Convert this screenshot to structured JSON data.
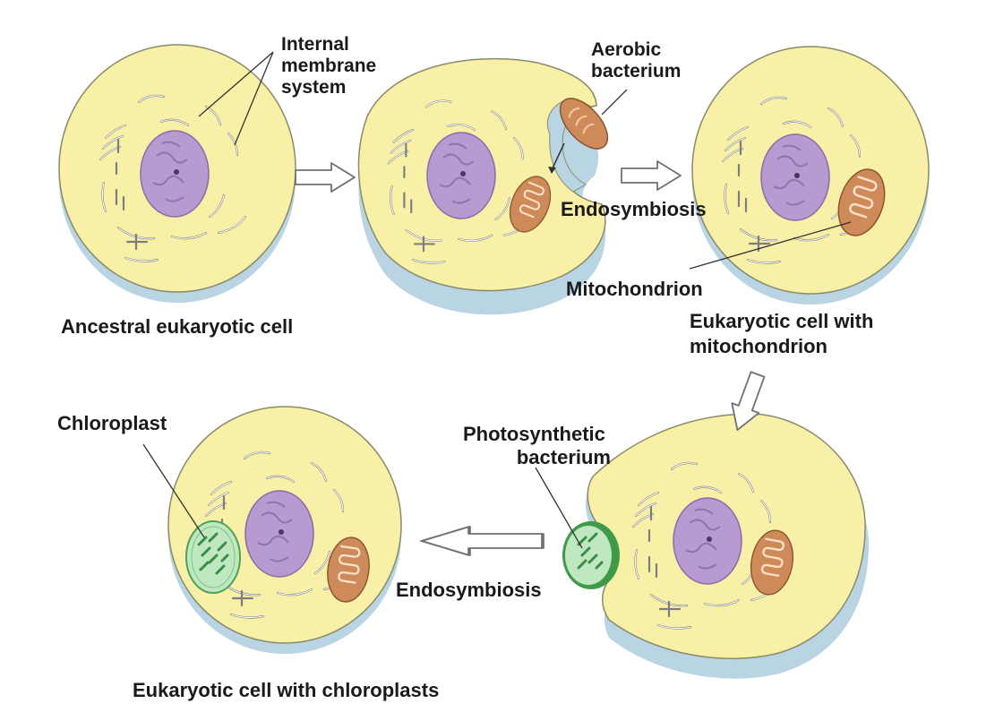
{
  "labels": {
    "internal_membrane_system": [
      "Internal",
      "membrane",
      "system"
    ],
    "aerobic_bacterium": [
      "Aerobic",
      "bacterium"
    ],
    "endosymbiosis_top": "Endosymbiosis",
    "mitochondrion": "Mitochondrion",
    "ancestral_cell": "Ancestral eukaryotic cell",
    "cell_with_mitochondrion": [
      "Eukaryotic cell with",
      "mitochondrion"
    ],
    "chloroplast": "Chloroplast",
    "photosynthetic_bacterium": [
      "Photosynthetic",
      "bacterium"
    ],
    "endosymbiosis_bottom": "Endosymbiosis",
    "cell_with_chloroplasts": "Eukaryotic cell with chloroplasts"
  },
  "colors": {
    "cytoplasm": "#f8f0a6",
    "cell_rim": "#b9d4e2",
    "cell_outline": "#8a8a6a",
    "nucleus": "#b69ad0",
    "mitochondrion": "#cf8a5a",
    "chloroplast": "#bfe8c0",
    "photosynthetic_bacterium": "#3f9a48",
    "arrow_fill": "#ffffff",
    "arrow_stroke": "#707070"
  }
}
